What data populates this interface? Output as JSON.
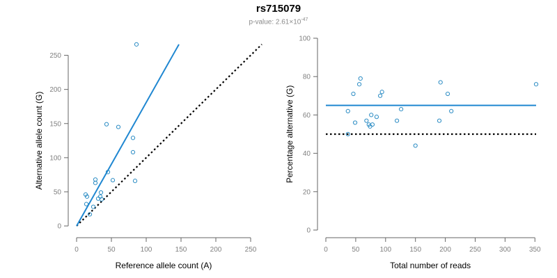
{
  "header": {
    "title": "rs715079",
    "subtitle_prefix": "p-value: 2.61×10",
    "subtitle_exp": "-47"
  },
  "colors": {
    "points": "#2b8cc4",
    "fit_line": "#1f87d1",
    "reference_line": "#000000",
    "axis": "#666666",
    "tick_text": "#808080"
  },
  "chart_data": [
    {
      "type": "scatter",
      "xlabel": "Reference allele count (A)",
      "ylabel": "Alternative allele count (G)",
      "xlim": [
        0,
        260
      ],
      "ylim": [
        -5,
        275
      ],
      "xticks": [
        0,
        50,
        100,
        150,
        200,
        250
      ],
      "yticks": [
        0,
        50,
        100,
        150,
        200,
        250
      ],
      "points": [
        [
          86,
          266
        ],
        [
          43,
          149
        ],
        [
          60,
          145
        ],
        [
          81,
          129
        ],
        [
          81,
          108
        ],
        [
          84,
          66
        ],
        [
          45,
          79
        ],
        [
          27,
          68
        ],
        [
          52,
          67
        ],
        [
          27,
          63
        ],
        [
          35,
          49
        ],
        [
          13,
          46
        ],
        [
          15,
          43
        ],
        [
          34,
          43
        ],
        [
          31,
          40
        ],
        [
          36,
          39
        ],
        [
          14,
          32
        ],
        [
          24,
          28
        ],
        [
          19,
          17
        ]
      ],
      "fit_line": {
        "from": [
          0,
          0
        ],
        "to": [
          147,
          266
        ]
      },
      "reference_line": {
        "from": [
          0,
          0
        ],
        "to": [
          266,
          266
        ]
      }
    },
    {
      "type": "scatter",
      "xlabel": "Total number of reads",
      "ylabel": "Percentage alternative (G)",
      "xlim": [
        0,
        352
      ],
      "ylim": [
        0,
        100
      ],
      "xticks": [
        0,
        50,
        100,
        150,
        200,
        250,
        300,
        350
      ],
      "yticks": [
        0,
        20,
        40,
        60,
        80,
        100
      ],
      "points": [
        [
          37,
          62
        ],
        [
          37,
          50
        ],
        [
          46,
          71
        ],
        [
          49,
          56
        ],
        [
          56,
          76
        ],
        [
          58,
          79
        ],
        [
          68,
          57
        ],
        [
          72,
          55
        ],
        [
          74,
          54
        ],
        [
          76,
          60
        ],
        [
          78,
          55
        ],
        [
          85,
          59
        ],
        [
          91,
          70
        ],
        [
          94,
          72
        ],
        [
          119,
          57
        ],
        [
          126,
          63
        ],
        [
          150,
          44
        ],
        [
          190,
          57
        ],
        [
          192,
          77
        ],
        [
          204,
          71
        ],
        [
          210,
          62
        ],
        [
          352,
          76
        ]
      ],
      "fit_line": {
        "y": 65
      },
      "reference_line": {
        "y": 50
      }
    }
  ]
}
